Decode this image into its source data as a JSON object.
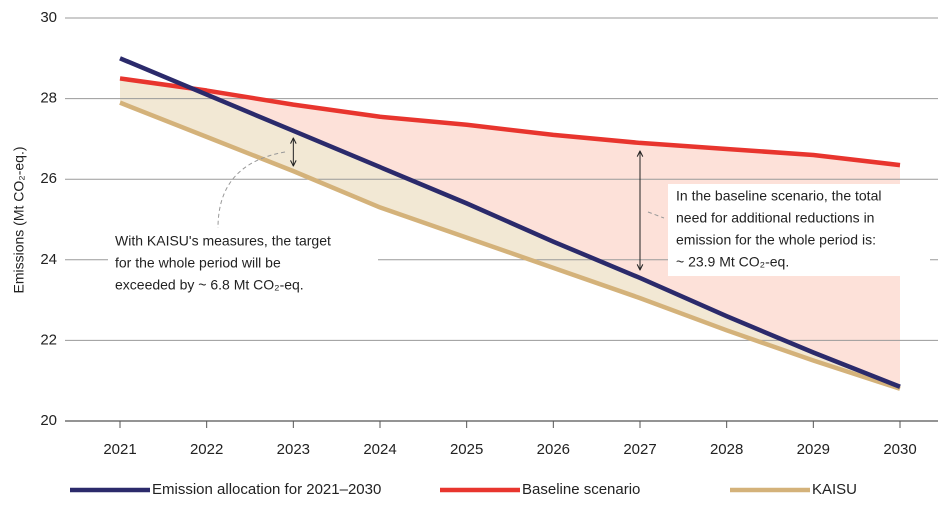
{
  "chart_data": {
    "type": "line",
    "ylabel": "Emissions (Mt CO₂-eq.)",
    "categories": [
      "2021",
      "2022",
      "2023",
      "2024",
      "2025",
      "2026",
      "2027",
      "2028",
      "2029",
      "2030"
    ],
    "series": [
      {
        "name": "Emission allocation for 2021–2030",
        "color": "#2b2a6b",
        "values": [
          29.0,
          28.1,
          27.2,
          26.3,
          25.4,
          24.45,
          23.55,
          22.6,
          21.7,
          20.85
        ]
      },
      {
        "name": "Baseline scenario",
        "color": "#e8352e",
        "values": [
          28.5,
          28.2,
          27.85,
          27.55,
          27.35,
          27.1,
          26.9,
          26.75,
          26.6,
          26.35
        ]
      },
      {
        "name": "KAISU",
        "color": "#d4b27a",
        "values": [
          27.9,
          27.05,
          26.2,
          25.3,
          24.55,
          23.8,
          23.05,
          22.25,
          21.5,
          20.8
        ]
      }
    ],
    "ylim": [
      20,
      30
    ],
    "yticks": [
      20,
      22,
      24,
      26,
      28,
      30
    ],
    "grid": true,
    "annotations": [
      [
        "With KAISU's measures, the target",
        "for the whole period will be",
        "exceeded by ~ 6.8 Mt CO₂-eq."
      ],
      [
        "In the baseline scenario, the total",
        "need for additional reductions in",
        "emission for the whole period is:",
        "~ 23.9 Mt CO₂-eq."
      ]
    ]
  }
}
